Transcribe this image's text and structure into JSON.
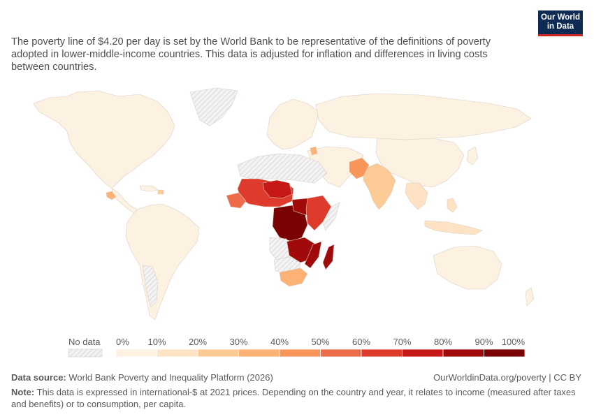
{
  "subtitle": "The poverty line of $4.20 per day is set by the World Bank to be representative of the definitions of poverty adopted in lower-middle-income countries. This data is adjusted for inflation and differences in living costs between countries.",
  "logo": {
    "line1": "Our World",
    "line2": "in Data",
    "bg": "#0f2b53",
    "accent": "#ce261e"
  },
  "legend": {
    "no_data_label": "No data",
    "ticks": [
      "0%",
      "10%",
      "20%",
      "30%",
      "40%",
      "50%",
      "60%",
      "70%",
      "80%",
      "90%",
      "100%"
    ],
    "colors": [
      "#fdf1e2",
      "#fde3c3",
      "#fcca95",
      "#fbb274",
      "#f89558",
      "#ee6b4a",
      "#de3b2d",
      "#c61917",
      "#a10a0a",
      "#7a0303"
    ]
  },
  "source": {
    "label": "Data source:",
    "text": "World Bank Poverty and Inequality Platform (2026)"
  },
  "credit": "OurWorldinData.org/poverty | CC BY",
  "note": {
    "label": "Note:",
    "text": "This data is expressed in international-$ at 2021 prices. Depending on the country and year, it relates to income (measured after taxes and benefits) or to consumption, per capita."
  },
  "map_colors": {
    "no_data_fill": "#eeeeee",
    "hatch": "#c9c9c9",
    "border": "#d8d8d8",
    "base": "#fdf1e2"
  }
}
